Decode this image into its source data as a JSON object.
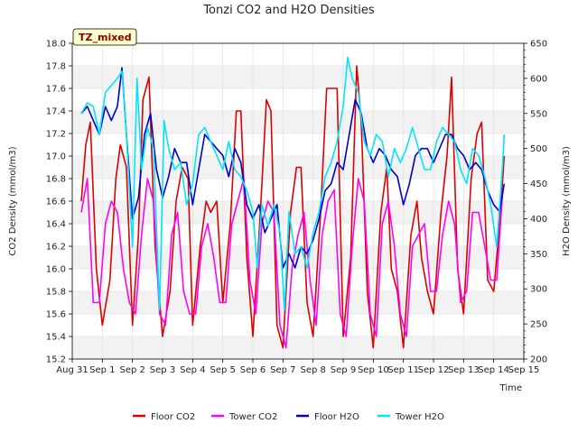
{
  "chart_data": {
    "type": "line",
    "title": "Tonzi CO2 and H2O Densities",
    "xlabel": "Time",
    "ylabel_left": "CO2 Density (mmol/m3)",
    "ylabel_right": "H2O Density (mmol/m3)",
    "badge": "TZ_mixed",
    "ylim_left": [
      15.2,
      18.0
    ],
    "ylim_right": [
      200,
      650
    ],
    "xlim": [
      0,
      15
    ],
    "x_ticks": [
      0,
      1,
      2,
      3,
      4,
      5,
      6,
      7,
      8,
      9,
      10,
      11,
      12,
      13,
      14,
      15
    ],
    "x_tick_labels": [
      "Aug 31",
      "Sep 1",
      "Sep 2",
      "Sep 3",
      "Sep 4",
      "Sep 5",
      "Sep 6",
      "Sep 7",
      "Sep 8",
      "Sep 9",
      "Sep 10",
      "Sep 11",
      "Sep 12",
      "Sep 13",
      "Sep 14",
      "Sep 15"
    ],
    "y_left_ticks": [
      15.2,
      15.4,
      15.6,
      15.8,
      16.0,
      16.2,
      16.4,
      16.6,
      16.8,
      17.0,
      17.2,
      17.4,
      17.6,
      17.8,
      18.0
    ],
    "y_left_tick_labels": [
      "15.2",
      "15.4",
      "15.6",
      "15.8",
      "16.0",
      "16.2",
      "16.4",
      "16.6",
      "16.8",
      "17.0",
      "17.2",
      "17.4",
      "17.6",
      "17.8",
      "18.0"
    ],
    "y_right_ticks": [
      200,
      250,
      300,
      350,
      400,
      450,
      500,
      550,
      600,
      650
    ],
    "y_right_tick_labels": [
      "200",
      "250",
      "300",
      "350",
      "400",
      "450",
      "500",
      "550",
      "600",
      "650"
    ],
    "legend_position": "bottom",
    "series": [
      {
        "name": "Floor CO2",
        "axis": "left",
        "color": "#dd0000",
        "x": [
          0.3,
          0.45,
          0.6,
          0.8,
          1.0,
          1.25,
          1.45,
          1.6,
          1.8,
          2.0,
          2.2,
          2.35,
          2.55,
          2.75,
          3.0,
          3.25,
          3.45,
          3.65,
          3.85,
          4.0,
          4.25,
          4.45,
          4.6,
          4.8,
          5.0,
          5.25,
          5.45,
          5.6,
          5.8,
          6.0,
          6.25,
          6.45,
          6.6,
          6.8,
          7.0,
          7.25,
          7.45,
          7.6,
          7.8,
          8.0,
          8.25,
          8.45,
          8.6,
          8.8,
          9.0,
          9.25,
          9.45,
          9.6,
          9.8,
          10.0,
          10.25,
          10.45,
          10.6,
          10.8,
          11.0,
          11.25,
          11.45,
          11.6,
          11.8,
          12.0,
          12.25,
          12.45,
          12.6,
          12.8,
          13.0,
          13.25,
          13.45,
          13.6,
          13.8,
          14.0,
          14.2,
          14.35
        ],
        "y": [
          16.6,
          17.1,
          17.3,
          16.0,
          15.5,
          15.9,
          16.8,
          17.1,
          16.9,
          15.5,
          16.3,
          17.5,
          17.7,
          16.2,
          15.4,
          15.8,
          16.6,
          16.9,
          16.8,
          15.5,
          16.2,
          16.6,
          16.5,
          16.6,
          15.7,
          16.4,
          17.4,
          17.4,
          16.1,
          15.4,
          16.5,
          17.5,
          17.4,
          15.5,
          15.3,
          16.5,
          16.9,
          16.9,
          15.7,
          15.4,
          16.5,
          17.6,
          17.6,
          17.6,
          15.4,
          16.1,
          17.8,
          17.3,
          15.8,
          15.3,
          16.5,
          16.9,
          16.0,
          15.8,
          15.3,
          16.3,
          16.6,
          16.1,
          15.8,
          15.6,
          16.5,
          17.0,
          17.7,
          16.0,
          15.6,
          16.8,
          17.2,
          17.3,
          15.9,
          15.8,
          16.4,
          17.0
        ]
      },
      {
        "name": "Tower CO2",
        "axis": "left",
        "color": "#ff00ff",
        "x": [
          0.3,
          0.5,
          0.7,
          0.9,
          1.1,
          1.3,
          1.5,
          1.7,
          1.9,
          2.1,
          2.3,
          2.5,
          2.7,
          2.9,
          3.1,
          3.3,
          3.5,
          3.7,
          3.9,
          4.1,
          4.3,
          4.5,
          4.7,
          4.9,
          5.1,
          5.3,
          5.5,
          5.7,
          5.9,
          6.1,
          6.3,
          6.5,
          6.7,
          6.9,
          7.1,
          7.3,
          7.5,
          7.7,
          7.9,
          8.1,
          8.3,
          8.5,
          8.7,
          8.9,
          9.1,
          9.3,
          9.5,
          9.7,
          9.9,
          10.1,
          10.3,
          10.5,
          10.7,
          10.9,
          11.1,
          11.3,
          11.5,
          11.7,
          11.9,
          12.1,
          12.3,
          12.5,
          12.7,
          12.9,
          13.1,
          13.3,
          13.5,
          13.7,
          13.9,
          14.1,
          14.3
        ],
        "y": [
          16.5,
          16.8,
          15.7,
          15.7,
          16.4,
          16.6,
          16.5,
          16.0,
          15.7,
          15.6,
          16.3,
          16.8,
          16.6,
          15.6,
          15.5,
          16.3,
          16.5,
          15.8,
          15.6,
          15.6,
          16.2,
          16.4,
          16.1,
          15.7,
          15.7,
          16.4,
          16.6,
          16.8,
          15.9,
          15.6,
          16.4,
          16.6,
          16.5,
          15.5,
          15.3,
          16.0,
          16.3,
          16.5,
          15.9,
          15.5,
          16.3,
          16.6,
          16.7,
          15.6,
          15.4,
          16.2,
          16.8,
          16.6,
          15.6,
          15.4,
          16.4,
          16.6,
          16.2,
          15.6,
          15.4,
          16.2,
          16.3,
          16.4,
          15.8,
          15.8,
          16.3,
          16.6,
          16.4,
          15.7,
          15.8,
          16.5,
          16.5,
          16.2,
          15.9,
          15.9,
          16.7
        ]
      },
      {
        "name": "Floor H2O",
        "axis": "right",
        "color": "#0000cc",
        "x": [
          0.3,
          0.5,
          0.7,
          0.9,
          1.1,
          1.3,
          1.5,
          1.65,
          1.8,
          2.0,
          2.2,
          2.4,
          2.6,
          2.8,
          3.0,
          3.2,
          3.4,
          3.6,
          3.8,
          4.0,
          4.2,
          4.4,
          4.6,
          4.8,
          5.0,
          5.2,
          5.4,
          5.6,
          5.8,
          6.0,
          6.2,
          6.4,
          6.6,
          6.8,
          7.0,
          7.2,
          7.4,
          7.6,
          7.8,
          8.0,
          8.2,
          8.4,
          8.6,
          8.8,
          9.0,
          9.2,
          9.4,
          9.6,
          9.8,
          10.0,
          10.2,
          10.4,
          10.6,
          10.8,
          11.0,
          11.2,
          11.4,
          11.6,
          11.8,
          12.0,
          12.2,
          12.4,
          12.6,
          12.8,
          13.0,
          13.2,
          13.4,
          13.6,
          13.8,
          14.0,
          14.2,
          14.35
        ],
        "y": [
          550,
          560,
          540,
          520,
          560,
          540,
          560,
          615,
          520,
          400,
          430,
          520,
          550,
          470,
          430,
          460,
          500,
          480,
          480,
          420,
          470,
          520,
          510,
          500,
          490,
          460,
          500,
          480,
          420,
          400,
          420,
          380,
          400,
          420,
          330,
          350,
          330,
          360,
          350,
          370,
          400,
          440,
          450,
          480,
          470,
          520,
          570,
          550,
          500,
          480,
          500,
          490,
          470,
          460,
          420,
          450,
          490,
          500,
          500,
          480,
          500,
          520,
          520,
          500,
          490,
          470,
          480,
          470,
          440,
          420,
          410,
          450
        ]
      },
      {
        "name": "Tower H2O",
        "axis": "right",
        "color": "#00e5ff",
        "x": [
          0.3,
          0.5,
          0.7,
          0.9,
          1.1,
          1.3,
          1.5,
          1.65,
          1.8,
          2.0,
          2.15,
          2.3,
          2.5,
          2.7,
          2.9,
          3.05,
          3.2,
          3.4,
          3.6,
          3.8,
          4.0,
          4.2,
          4.4,
          4.6,
          4.8,
          5.0,
          5.2,
          5.4,
          5.6,
          5.8,
          6.0,
          6.15,
          6.3,
          6.5,
          6.7,
          6.9,
          7.05,
          7.2,
          7.4,
          7.6,
          7.8,
          8.0,
          8.2,
          8.4,
          8.6,
          8.8,
          9.0,
          9.15,
          9.3,
          9.5,
          9.7,
          9.9,
          10.1,
          10.3,
          10.5,
          10.7,
          10.9,
          11.1,
          11.3,
          11.5,
          11.7,
          11.9,
          12.1,
          12.3,
          12.5,
          12.7,
          12.9,
          13.1,
          13.3,
          13.5,
          13.7,
          13.9,
          14.1,
          14.3,
          14.35
        ],
        "y": [
          550,
          565,
          560,
          520,
          580,
          590,
          600,
          610,
          520,
          360,
          600,
          470,
          530,
          500,
          270,
          540,
          500,
          470,
          480,
          420,
          450,
          520,
          530,
          510,
          490,
          470,
          510,
          470,
          460,
          440,
          410,
          330,
          420,
          390,
          420,
          380,
          270,
          410,
          350,
          360,
          330,
          380,
          410,
          460,
          480,
          510,
          560,
          630,
          600,
          580,
          510,
          490,
          520,
          510,
          460,
          500,
          480,
          500,
          530,
          500,
          470,
          470,
          510,
          530,
          520,
          510,
          470,
          450,
          500,
          490,
          460,
          420,
          360,
          480,
          520
        ]
      }
    ]
  }
}
